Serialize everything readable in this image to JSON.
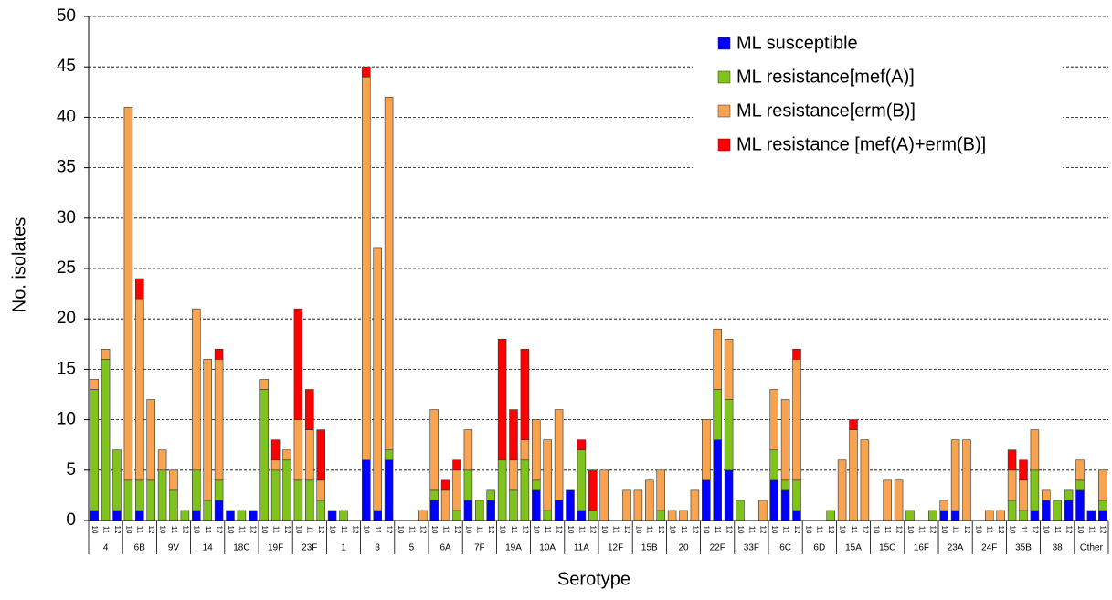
{
  "chart_data": {
    "type": "bar",
    "stacked": true,
    "x_label": "Serotype",
    "y_label": "No. isolates",
    "ylim": [
      0,
      50
    ],
    "yticks": [
      0,
      5,
      10,
      15,
      20,
      25,
      30,
      35,
      40,
      45,
      50
    ],
    "grid": true,
    "legend_position": "top-right",
    "groups": [
      "4",
      "6B",
      "9V",
      "14",
      "18C",
      "19F",
      "23F",
      "1",
      "3",
      "5",
      "6A",
      "7F",
      "19A",
      "10A",
      "11A",
      "12F",
      "15B",
      "20",
      "22F",
      "33F",
      "6C",
      "6D",
      "15A",
      "15C",
      "16F",
      "23A",
      "24F",
      "35B",
      "38",
      "Other"
    ],
    "categories": [
      "10",
      "11",
      "12",
      "10",
      "11",
      "12",
      "10",
      "11",
      "12",
      "10",
      "11",
      "12",
      "10",
      "11",
      "12",
      "10",
      "11",
      "12",
      "10",
      "11",
      "12",
      "10",
      "11",
      "12",
      "10",
      "11",
      "12",
      "10",
      "11",
      "12",
      "10",
      "11",
      "12",
      "10",
      "11",
      "12",
      "10",
      "11",
      "12",
      "10",
      "11",
      "12",
      "10",
      "11",
      "12",
      "10",
      "11",
      "12",
      "10",
      "11",
      "12",
      "10",
      "11",
      "12",
      "10",
      "11",
      "12",
      "10",
      "11",
      "12",
      "10",
      "11",
      "12",
      "10",
      "11",
      "12",
      "10",
      "11",
      "12",
      "10",
      "11",
      "12",
      "10",
      "11",
      "12",
      "10",
      "11",
      "12",
      "10",
      "11",
      "12",
      "10",
      "11",
      "12",
      "10",
      "11",
      "12",
      "10",
      "11",
      "12"
    ],
    "series": [
      {
        "name": "ML susceptible",
        "color": "#0000ff",
        "values": [
          1,
          0,
          1,
          0,
          1,
          0,
          0,
          0,
          0,
          1,
          0,
          2,
          1,
          0,
          1,
          0,
          0,
          0,
          0,
          0,
          0,
          1,
          0,
          0,
          6,
          1,
          6,
          0,
          0,
          0,
          2,
          0,
          0,
          2,
          0,
          2,
          0,
          0,
          0,
          3,
          0,
          2,
          3,
          1,
          0,
          0,
          0,
          0,
          0,
          0,
          0,
          0,
          0,
          0,
          4,
          8,
          5,
          0,
          0,
          0,
          4,
          3,
          1,
          0,
          0,
          0,
          0,
          0,
          0,
          0,
          0,
          0,
          0,
          0,
          0,
          1,
          1,
          0,
          0,
          0,
          0,
          0,
          0,
          1,
          2,
          0,
          2,
          3,
          1,
          1
        ]
      },
      {
        "name": "ML resistance[mef(A)]",
        "color": "#80c31c",
        "values": [
          12,
          16,
          6,
          4,
          3,
          4,
          5,
          3,
          1,
          4,
          2,
          2,
          0,
          1,
          0,
          13,
          5,
          6,
          4,
          4,
          2,
          0,
          1,
          0,
          0,
          0,
          1,
          0,
          0,
          0,
          1,
          0,
          1,
          3,
          2,
          1,
          6,
          3,
          6,
          1,
          1,
          0,
          0,
          6,
          1,
          0,
          0,
          0,
          0,
          0,
          1,
          0,
          0,
          0,
          0,
          5,
          7,
          2,
          0,
          0,
          3,
          1,
          3,
          0,
          0,
          1,
          0,
          0,
          0,
          0,
          0,
          0,
          1,
          0,
          1,
          0,
          0,
          0,
          0,
          0,
          0,
          2,
          1,
          4,
          0,
          2,
          1,
          1,
          0,
          1
        ]
      },
      {
        "name": "ML resistance[erm(B)]",
        "color": "#f7a34f",
        "values": [
          1,
          1,
          0,
          37,
          18,
          8,
          2,
          2,
          0,
          16,
          14,
          12,
          0,
          0,
          0,
          1,
          1,
          1,
          6,
          5,
          2,
          0,
          0,
          0,
          38,
          26,
          35,
          0,
          0,
          1,
          8,
          3,
          4,
          4,
          0,
          0,
          0,
          3,
          2,
          6,
          7,
          9,
          0,
          0,
          0,
          5,
          0,
          3,
          3,
          4,
          4,
          1,
          1,
          3,
          6,
          6,
          6,
          0,
          0,
          2,
          6,
          8,
          12,
          0,
          0,
          0,
          6,
          9,
          8,
          0,
          4,
          4,
          0,
          0,
          0,
          1,
          7,
          8,
          0,
          1,
          1,
          3,
          3,
          4,
          1,
          0,
          0,
          2,
          0,
          3
        ]
      },
      {
        "name": "ML resistance [mef(A)+erm(B)]",
        "color": "#ff0000",
        "values": [
          0,
          0,
          0,
          0,
          2,
          0,
          0,
          0,
          0,
          0,
          0,
          1,
          0,
          0,
          0,
          0,
          2,
          0,
          11,
          4,
          5,
          0,
          0,
          0,
          1,
          0,
          0,
          0,
          0,
          0,
          0,
          1,
          1,
          0,
          0,
          0,
          12,
          5,
          9,
          0,
          0,
          0,
          0,
          1,
          4,
          0,
          0,
          0,
          0,
          0,
          0,
          0,
          0,
          0,
          0,
          0,
          0,
          0,
          0,
          0,
          0,
          0,
          1,
          0,
          0,
          0,
          0,
          1,
          0,
          0,
          0,
          0,
          0,
          0,
          0,
          0,
          0,
          0,
          0,
          0,
          0,
          2,
          2,
          0,
          0,
          0,
          0,
          0,
          0,
          0
        ]
      }
    ]
  }
}
